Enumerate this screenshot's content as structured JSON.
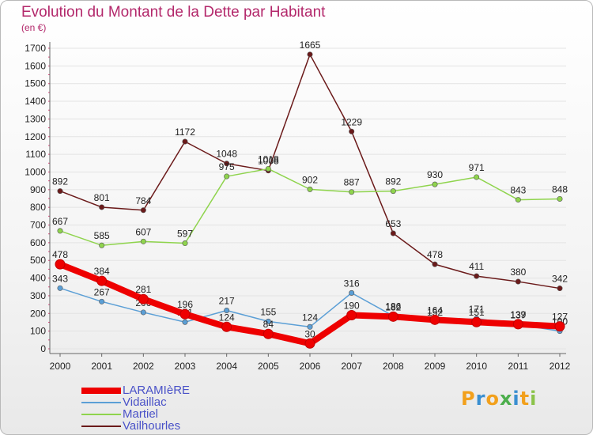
{
  "header": {
    "title": "Evolution du Montant de la Dette par Habitant",
    "unit": "(en €)"
  },
  "logo": {
    "letters": [
      "P",
      "r",
      "o",
      "x",
      "i",
      "t",
      "i"
    ],
    "colors": [
      "#f2a01c",
      "#3a8fd1",
      "#f2a01c",
      "#4cae4c",
      "#3a8fd1",
      "#f2a01c",
      "#8bc34a"
    ]
  },
  "chart_data": {
    "type": "line",
    "title": "Evolution du Montant de la Dette par Habitant",
    "ylabel": "(en €)",
    "xlabel": "",
    "ylim": [
      0,
      1700
    ],
    "yticks": [
      0,
      100,
      200,
      300,
      400,
      500,
      600,
      700,
      800,
      900,
      1000,
      1100,
      1200,
      1300,
      1400,
      1500,
      1600,
      1700
    ],
    "x": [
      "2000",
      "2001",
      "2002",
      "2003",
      "2004",
      "2005",
      "2006",
      "2007",
      "2008",
      "2009",
      "2010",
      "2011",
      "2012"
    ],
    "grid": "horizontal",
    "legend": "bottom-left",
    "series": [
      {
        "name": "LARAMIèRE",
        "color": "#ee0000",
        "values": [
          478,
          384,
          281,
          196,
          124,
          84,
          30,
          190,
          182,
          164,
          151,
          139,
          127
        ]
      },
      {
        "name": "Vidaillac",
        "color": "#5b9fd6",
        "values": [
          343,
          267,
          206,
          151,
          217,
          155,
          124,
          316,
          186,
          152,
          171,
          137,
          100
        ]
      },
      {
        "name": "Martiel",
        "color": "#8fd44d",
        "values": [
          667,
          585,
          607,
          597,
          975,
          1018,
          902,
          887,
          892,
          930,
          971,
          843,
          848
        ]
      },
      {
        "name": "Vailhourles",
        "color": "#6b1a1a",
        "values": [
          892,
          801,
          784,
          1172,
          1048,
          1008,
          1665,
          1229,
          653,
          478,
          411,
          380,
          342
        ]
      }
    ]
  }
}
